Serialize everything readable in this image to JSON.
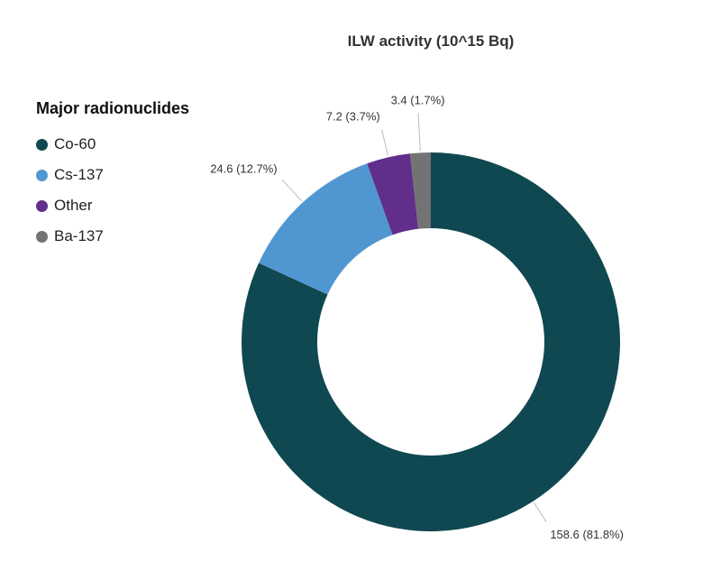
{
  "chart_data": {
    "type": "pie",
    "donut": true,
    "title": "ILW activity (10^15 Bq)",
    "legend_title": "Major radionuclides",
    "legend_position": "left",
    "categories": [
      "Co-60",
      "Cs-137",
      "Other",
      "Ba-137"
    ],
    "values": [
      158.6,
      24.6,
      7.2,
      3.4
    ],
    "percents": [
      81.8,
      12.7,
      3.7,
      1.7
    ],
    "labels": [
      "158.6 (81.8%)",
      "24.6 (12.7%)",
      "7.2 (3.7%)",
      "3.4 (1.7%)"
    ],
    "colors": [
      "#0f4850",
      "#5097d1",
      "#612e8b",
      "#737373"
    ]
  }
}
